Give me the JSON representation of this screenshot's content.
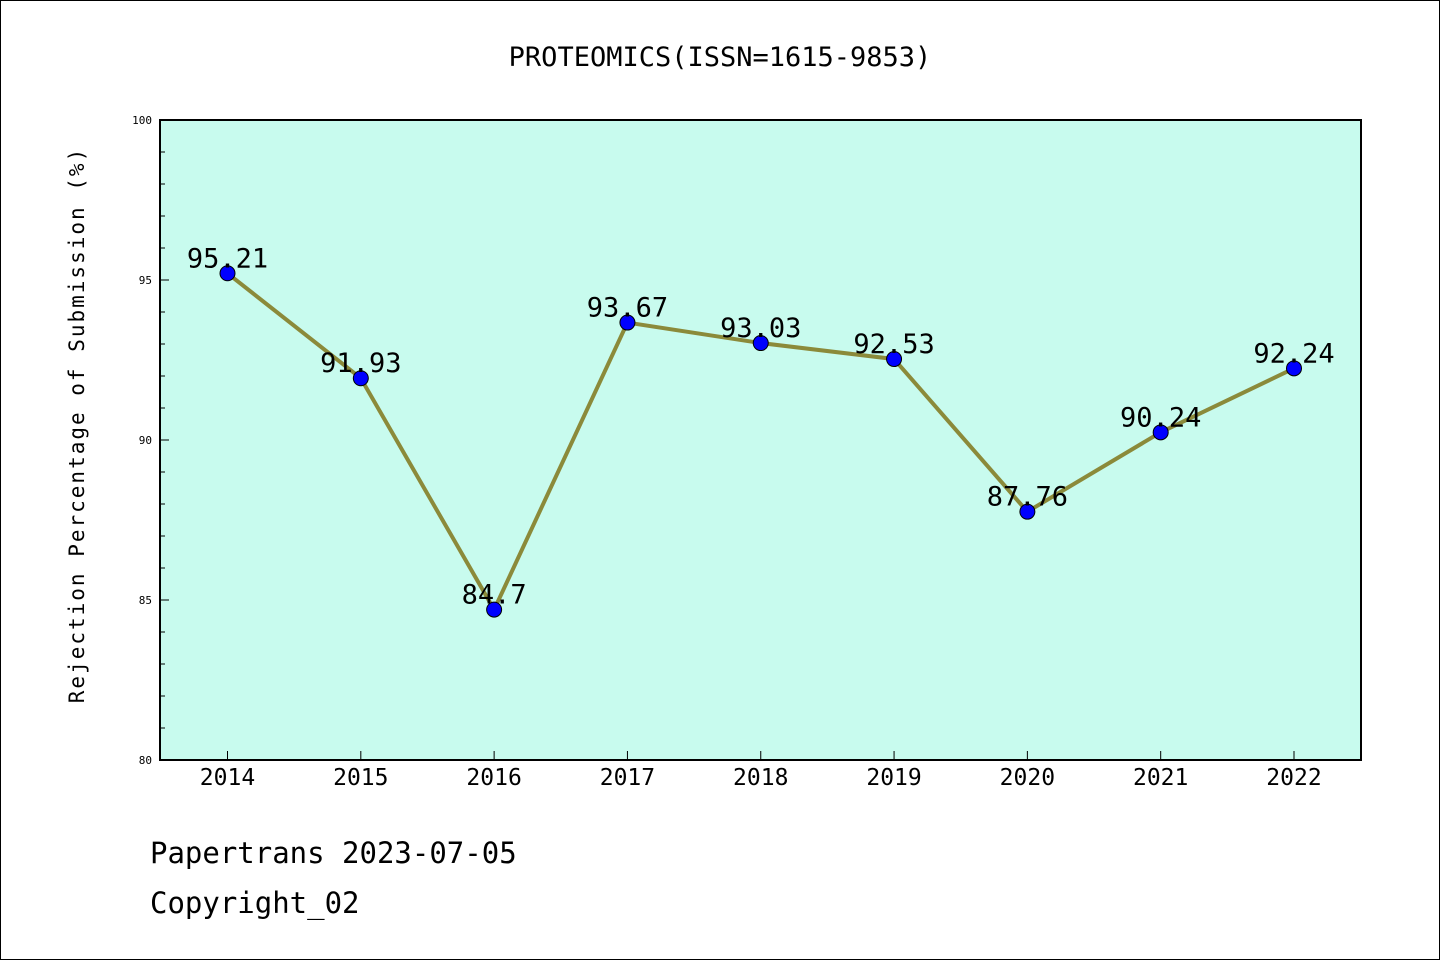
{
  "chart_data": {
    "type": "line",
    "title": "PROTEOMICS(ISSN=1615-9853)",
    "ylabel": "Rejection Percentage of Submission (%)",
    "xlabel": "",
    "categories": [
      "2014",
      "2015",
      "2016",
      "2017",
      "2018",
      "2019",
      "2020",
      "2021",
      "2022"
    ],
    "values": [
      95.21,
      91.93,
      84.7,
      93.67,
      93.03,
      92.53,
      87.76,
      90.24,
      92.24
    ],
    "data_labels": [
      "95.21",
      "91.93",
      "84.7",
      "93.67",
      "93.03",
      "92.53",
      "87.76",
      "90.24",
      "92.24"
    ],
    "ylim": [
      80,
      100
    ],
    "yticks": [
      80,
      85,
      90,
      95,
      100
    ],
    "ytick_labels": [
      "80",
      "85",
      "90",
      "95",
      "100"
    ],
    "grid": false,
    "colors": {
      "plot_background": "#c8fbee",
      "line": "#8b8a3a",
      "marker": "#0000ff"
    }
  },
  "footer": {
    "line1": "Papertrans 2023-07-05",
    "line2": "Copyright_02"
  }
}
